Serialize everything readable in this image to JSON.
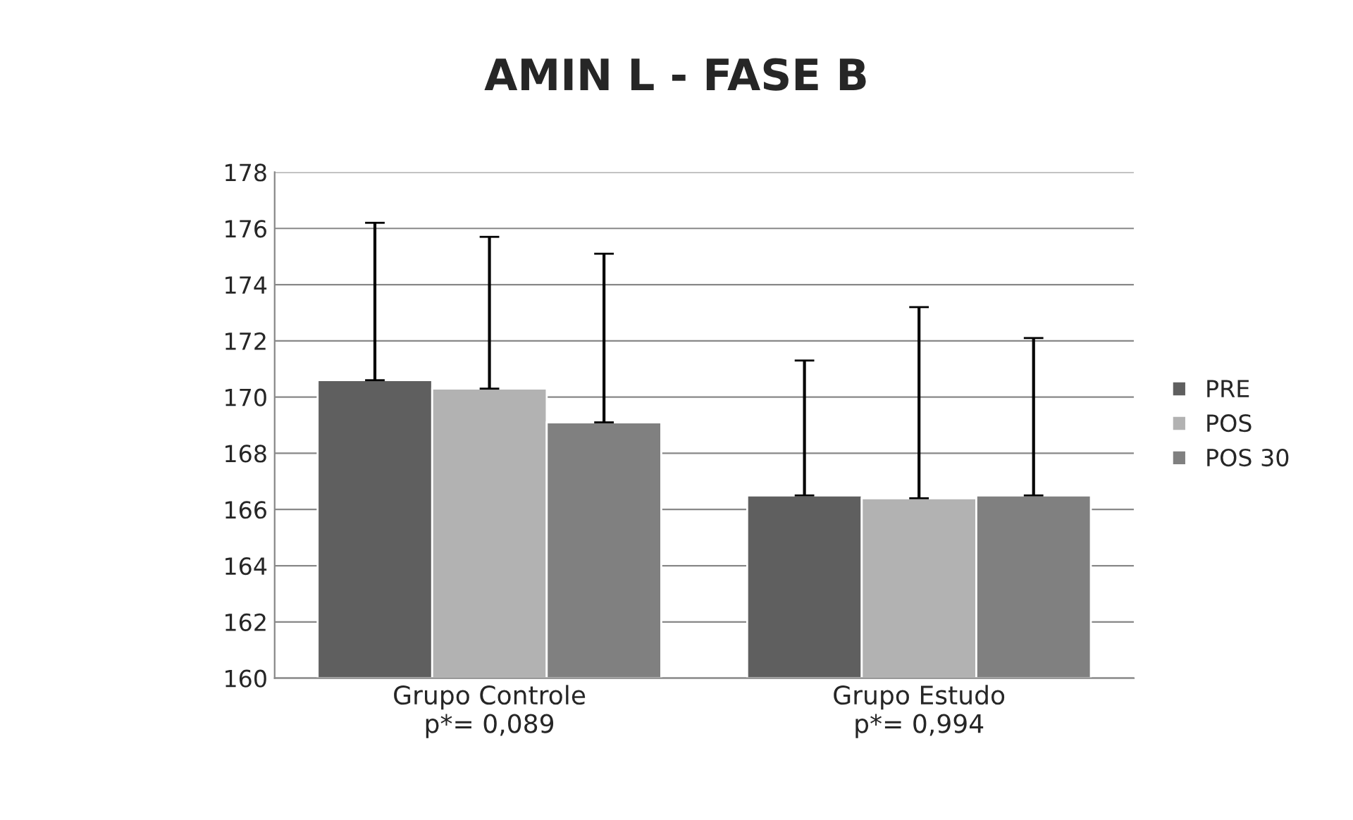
{
  "chart_data": {
    "type": "bar",
    "title": "AMIN L - FASE B",
    "categories": [
      "Grupo Controle\np*= 0,089",
      "Grupo Estudo\np*= 0,994"
    ],
    "series": [
      {
        "name": "PRE",
        "color": "#5f5f5f",
        "values": [
          170.6,
          166.5
        ],
        "errors": [
          [
            170.6,
            176.2
          ],
          [
            166.5,
            171.3
          ]
        ]
      },
      {
        "name": "POS",
        "color": "#b2b2b2",
        "values": [
          170.3,
          166.4
        ],
        "errors": [
          [
            170.3,
            175.7
          ],
          [
            166.4,
            173.2
          ]
        ]
      },
      {
        "name": "POS 30",
        "color": "#808080",
        "values": [
          169.1,
          166.5
        ],
        "errors": [
          [
            169.1,
            175.1
          ],
          [
            166.5,
            172.1
          ]
        ]
      }
    ],
    "ylim": [
      160,
      178
    ],
    "yticks": [
      160,
      162,
      164,
      166,
      168,
      170,
      172,
      174,
      176,
      178
    ],
    "grid": "y",
    "legend": "right"
  }
}
